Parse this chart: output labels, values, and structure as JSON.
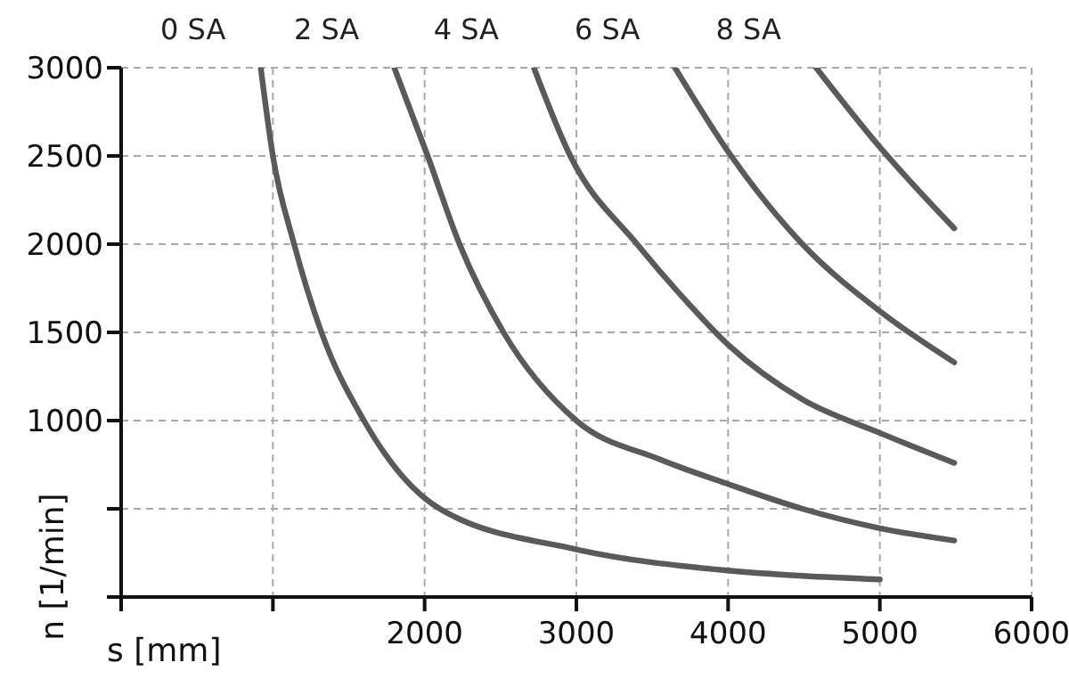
{
  "chart_data": {
    "type": "line",
    "xlabel": "s [mm]",
    "ylabel": "n [1/min]",
    "xlim": [
      0,
      6000
    ],
    "xticks": [
      {
        "value": 0,
        "label": null
      },
      {
        "value": 1000,
        "label": null
      },
      2000,
      3000,
      4000,
      5000,
      6000
    ],
    "ylim": [
      0,
      3000
    ],
    "yticks": [
      {
        "value": 0,
        "label": null
      },
      {
        "value": 500,
        "label": null
      },
      1000,
      1500,
      2000,
      2500,
      3000
    ],
    "grid": true,
    "legend": false,
    "marker": "none",
    "line_style": "solid",
    "series": [
      {
        "name": "0 SA",
        "color": "#5a5a5a",
        "x": [
          920,
          1000,
          1140,
          1320,
          1600,
          2100,
          3000,
          4000,
          4490,
          5000
        ],
        "values": [
          3000,
          2500,
          2000,
          1500,
          1000,
          500,
          270,
          150,
          120,
          100
        ]
      },
      {
        "name": "2 SA",
        "color": "#5a5a5a",
        "x": [
          1800,
          2020,
          2230,
          2520,
          3000,
          3550,
          4000,
          4490,
          5000,
          5490
        ],
        "values": [
          3000,
          2500,
          2000,
          1500,
          1000,
          780,
          640,
          500,
          390,
          320
        ]
      },
      {
        "name": "4 SA",
        "color": "#5a5a5a",
        "x": [
          2720,
          2960,
          3400,
          3700,
          4000,
          4490,
          5000,
          5490
        ],
        "values": [
          3000,
          2500,
          2000,
          1700,
          1430,
          1120,
          930,
          760
        ]
      },
      {
        "name": "6 SA",
        "color": "#5a5a5a",
        "x": [
          3650,
          4020,
          4490,
          5000,
          5490
        ],
        "values": [
          3000,
          2500,
          2000,
          1620,
          1330
        ]
      },
      {
        "name": "8 SA",
        "color": "#5a5a5a",
        "x": [
          4580,
          5000,
          5490
        ],
        "values": [
          3000,
          2550,
          2090
        ]
      }
    ]
  }
}
